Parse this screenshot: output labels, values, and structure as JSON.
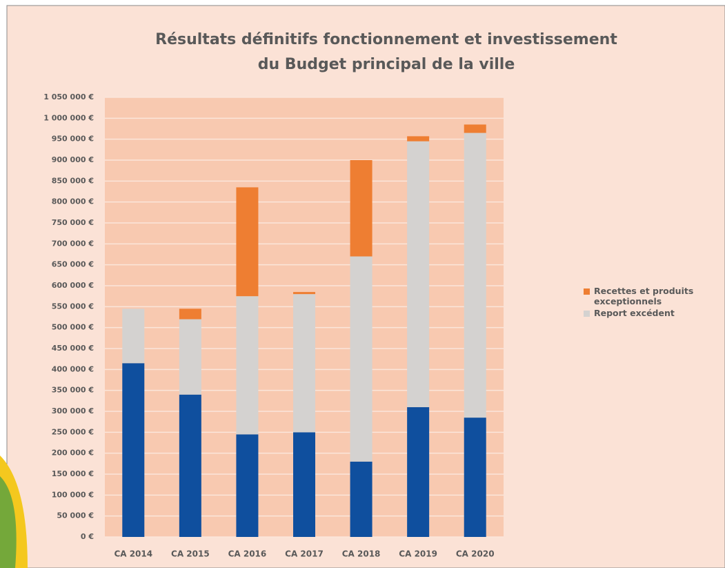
{
  "chart_data": {
    "type": "stacked_bar",
    "title": [
      "Résultats définitifs fonctionnement et investissement",
      "du Budget principal de la ville"
    ],
    "categories": [
      "CA 2014",
      "CA 2015",
      "CA 2016",
      "CA 2017",
      "CA 2018",
      "CA 2019",
      "CA 2020"
    ],
    "series": [
      {
        "color": "#0f4f9e",
        "values": [
          415000,
          340000,
          245000,
          250000,
          180000,
          310000,
          285000
        ]
      },
      {
        "name": "Report excédent",
        "color": "#d4d2d0",
        "values": [
          130000,
          180000,
          330000,
          330000,
          490000,
          635000,
          680000
        ]
      },
      {
        "name": "Recettes et produits exceptionnels",
        "color": "#ee7e32",
        "values": [
          0,
          25000,
          260000,
          5000,
          230000,
          12000,
          20000
        ]
      }
    ],
    "ylim": [
      0,
      1050000
    ],
    "yticks": [
      {
        "value": 0,
        "label": "0 €"
      },
      {
        "value": 50000,
        "label": "50 000 €"
      },
      {
        "value": 100000,
        "label": "100 000 €"
      },
      {
        "value": 150000,
        "label": "150 000 €"
      },
      {
        "value": 200000,
        "label": "200 000 €"
      },
      {
        "value": 250000,
        "label": "250 000 €"
      },
      {
        "value": 300000,
        "label": "300 000 €"
      },
      {
        "value": 350000,
        "label": "350 000 €"
      },
      {
        "value": 400000,
        "label": "400 000 €"
      },
      {
        "value": 450000,
        "label": "450 000 €"
      },
      {
        "value": 500000,
        "label": "500 000 €"
      },
      {
        "value": 550000,
        "label": "550 000 €"
      },
      {
        "value": 600000,
        "label": "600 000 €"
      },
      {
        "value": 650000,
        "label": "650 000 €"
      },
      {
        "value": 700000,
        "label": "700 000 €"
      },
      {
        "value": 750000,
        "label": "750 000 €"
      },
      {
        "value": 800000,
        "label": "800 000 €"
      },
      {
        "value": 850000,
        "label": "850 000 €"
      },
      {
        "value": 900000,
        "label": "900 000 €"
      },
      {
        "value": 950000,
        "label": "950 000 €"
      },
      {
        "value": 1000000,
        "label": "1 000 000 €"
      },
      {
        "value": 1050000,
        "label": "1 050 000 €"
      }
    ],
    "grid": true,
    "legend": "right"
  }
}
